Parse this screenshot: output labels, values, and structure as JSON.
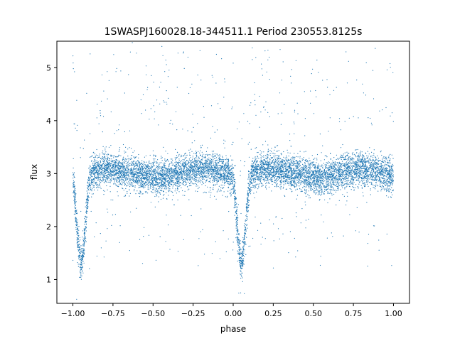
{
  "chart_data": {
    "type": "scatter",
    "title": "1SWASPJ160028.18-344511.1 Period 230553.8125s",
    "xlabel": "phase",
    "ylabel": "flux",
    "xlim": [
      -1.1,
      1.1
    ],
    "ylim": [
      0.55,
      5.5
    ],
    "xticks": [
      -1.0,
      -0.75,
      -0.5,
      -0.25,
      0.0,
      0.25,
      0.5,
      0.75,
      1.0
    ],
    "xtick_labels": [
      "−1.00",
      "−0.75",
      "−0.50",
      "−0.25",
      "0.00",
      "0.25",
      "0.50",
      "0.75",
      "1.00"
    ],
    "yticks": [
      1,
      2,
      3,
      4,
      5
    ],
    "ytick_labels": [
      "1",
      "2",
      "3",
      "4",
      "5"
    ],
    "grid": false,
    "legend": "none",
    "marker_color": "#1f77b4",
    "series": [
      {
        "profile": {
          "x": [
            -1.0,
            -0.99,
            -0.98,
            -0.97,
            -0.96,
            -0.95,
            -0.94,
            -0.93,
            -0.92,
            -0.91,
            -0.9,
            -0.88,
            -0.85,
            -0.8,
            -0.7,
            -0.6,
            -0.5,
            -0.45,
            -0.4,
            -0.3,
            -0.2,
            -0.1,
            -0.05,
            -0.02,
            0.0,
            0.01,
            0.02,
            0.03,
            0.04,
            0.05,
            0.06,
            0.07,
            0.08,
            0.09,
            0.1,
            0.12,
            0.15,
            0.2,
            0.3,
            0.4,
            0.5,
            0.55,
            0.6,
            0.7,
            0.8,
            0.9,
            0.95,
            0.98,
            1.0
          ],
          "y": [
            2.95,
            2.6,
            2.2,
            1.85,
            1.5,
            1.3,
            1.4,
            1.7,
            2.1,
            2.5,
            2.8,
            3.0,
            3.05,
            3.1,
            3.05,
            3.0,
            2.95,
            2.9,
            2.95,
            3.05,
            3.1,
            3.05,
            3.0,
            2.95,
            2.95,
            2.6,
            2.2,
            1.85,
            1.5,
            1.3,
            1.4,
            1.7,
            2.1,
            2.5,
            2.8,
            3.0,
            3.05,
            3.1,
            3.05,
            3.0,
            2.95,
            2.9,
            2.95,
            3.05,
            3.1,
            3.05,
            3.0,
            2.95,
            2.95
          ]
        }
      }
    ]
  }
}
